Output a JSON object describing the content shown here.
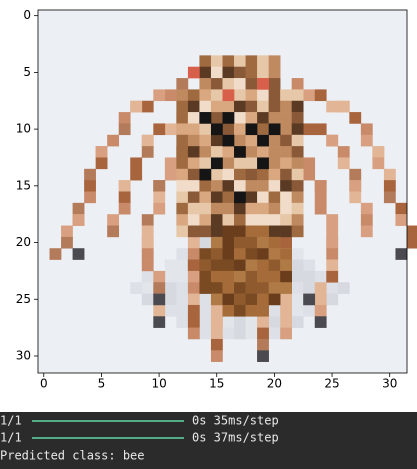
{
  "chart_data": {
    "type": "image",
    "xlim": [
      -0.5,
      31.5
    ],
    "ylim": [
      31.5,
      -0.5
    ],
    "xticks": [
      0,
      5,
      10,
      15,
      20,
      25,
      30
    ],
    "yticks": [
      0,
      5,
      10,
      15,
      20,
      25,
      30
    ]
  },
  "console": {
    "lines": [
      {
        "step": "1/1",
        "time": "0s 35ms/step"
      },
      {
        "step": "1/1",
        "time": "0s 37ms/step"
      }
    ],
    "prediction": "Predicted class: bee"
  }
}
